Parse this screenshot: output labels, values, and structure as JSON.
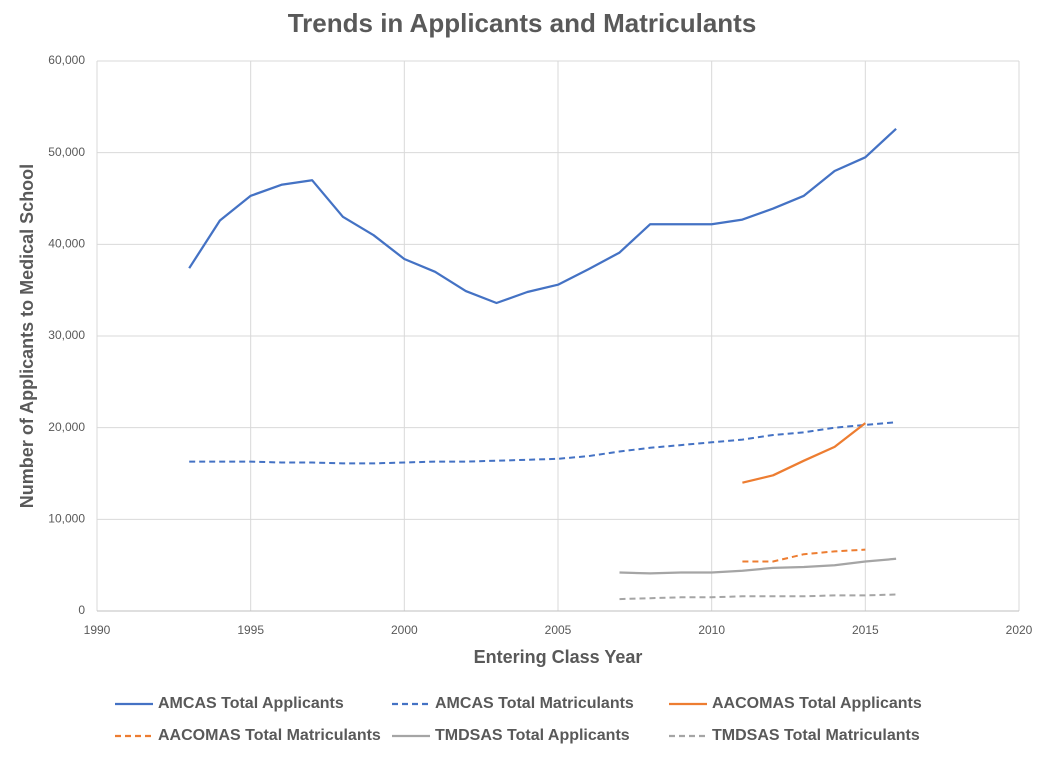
{
  "chart_data": {
    "type": "line",
    "title": "Trends in Applicants and Matriculants",
    "xlabel": "Entering Class Year",
    "ylabel": "Number of Applicants to Medical School",
    "x": [
      1993,
      1994,
      1995,
      1996,
      1997,
      1998,
      1999,
      2000,
      2001,
      2002,
      2003,
      2004,
      2005,
      2006,
      2007,
      2008,
      2009,
      2010,
      2011,
      2012,
      2013,
      2014,
      2015,
      2016
    ],
    "series": [
      {
        "name": "AMCAS Total Applicants",
        "color": "#4472c4",
        "line_style": "solid",
        "values": [
          37400,
          42600,
          45300,
          46500,
          47000,
          43000,
          41000,
          38400,
          37000,
          34900,
          33600,
          34800,
          35600,
          37300,
          39100,
          42200,
          42200,
          42200,
          42700,
          43900,
          45300,
          48000,
          49500,
          52600
        ]
      },
      {
        "name": "AMCAS Total Matriculants",
        "color": "#4472c4",
        "line_style": "dashed",
        "values": [
          16300,
          16300,
          16300,
          16200,
          16200,
          16100,
          16100,
          16200,
          16300,
          16300,
          16400,
          16500,
          16600,
          16900,
          17400,
          17800,
          18100,
          18400,
          18700,
          19200,
          19500,
          20000,
          20300,
          20600
        ]
      },
      {
        "name": "AACOMAS Total Applicants",
        "color": "#ed7d31",
        "line_style": "solid",
        "values": [
          null,
          null,
          null,
          null,
          null,
          null,
          null,
          null,
          null,
          null,
          null,
          null,
          null,
          null,
          null,
          null,
          null,
          null,
          14000,
          14800,
          16400,
          17900,
          20500,
          null
        ]
      },
      {
        "name": "AACOMAS Total Matriculants",
        "color": "#ed7d31",
        "line_style": "dashed",
        "values": [
          null,
          null,
          null,
          null,
          null,
          null,
          null,
          null,
          null,
          null,
          null,
          null,
          null,
          null,
          null,
          null,
          null,
          null,
          5400,
          5400,
          6200,
          6500,
          6700,
          null
        ]
      },
      {
        "name": "TMDSAS Total Applicants",
        "color": "#a5a5a5",
        "line_style": "solid",
        "values": [
          null,
          null,
          null,
          null,
          null,
          null,
          null,
          null,
          null,
          null,
          null,
          null,
          null,
          null,
          4200,
          4100,
          4200,
          4200,
          4400,
          4700,
          4800,
          5000,
          5400,
          5700
        ]
      },
      {
        "name": "TMDSAS Total Matriculants",
        "color": "#a5a5a5",
        "line_style": "dashed",
        "values": [
          null,
          null,
          null,
          null,
          null,
          null,
          null,
          null,
          null,
          null,
          null,
          null,
          null,
          null,
          1300,
          1400,
          1500,
          1500,
          1600,
          1600,
          1600,
          1700,
          1700,
          1800
        ]
      }
    ],
    "xlim": [
      1990,
      2020
    ],
    "xticks": [
      1990,
      1995,
      2000,
      2005,
      2010,
      2015,
      2020
    ],
    "ylim": [
      0,
      60000
    ],
    "yticks": [
      0,
      {
        "value": 10000,
        "label": "10,000"
      },
      {
        "value": 20000,
        "label": "20,000"
      },
      {
        "value": 30000,
        "label": "30,000"
      },
      {
        "value": 40000,
        "label": "40,000"
      },
      {
        "value": 50000,
        "label": "50,000"
      },
      {
        "value": 60000,
        "label": "60,000"
      }
    ],
    "grid": true,
    "legend": "bottom"
  }
}
